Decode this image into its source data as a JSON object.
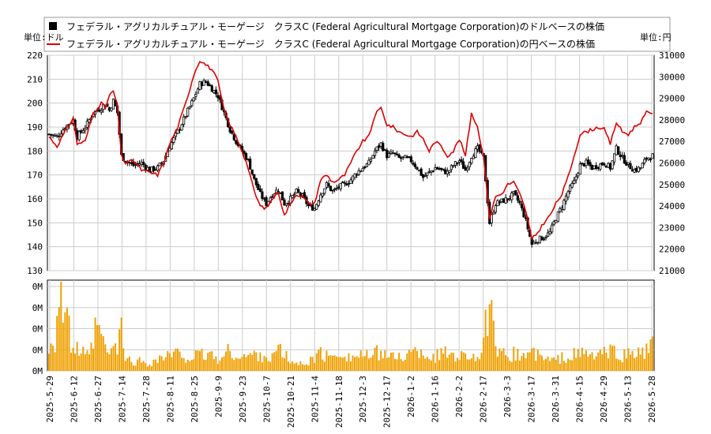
{
  "chart_data": {
    "type": "candlestick-line-volume",
    "legend": [
      {
        "label": "フェデラル・アグリカルチュアル・モーゲージ　クラスC (Federal Agricultural Mortgage Corporation)のドルベースの株価",
        "color": "#000000",
        "marker": "square"
      },
      {
        "label": "フェデラル・アグリカルチュアル・モーゲージ　クラスC (Federal Agricultural Mortgage Corporation)の円ベースの株価",
        "color": "#dd0000",
        "marker": "line"
      }
    ],
    "left_unit": "単位:ドル",
    "right_unit": "単位:円",
    "left_axis": {
      "min": 130,
      "max": 220,
      "ticks": [
        130,
        140,
        150,
        160,
        170,
        180,
        190,
        200,
        210,
        220
      ]
    },
    "right_axis": {
      "min": 21000,
      "max": 31000,
      "ticks": [
        21000,
        22000,
        23000,
        24000,
        25000,
        26000,
        27000,
        28000,
        29000,
        30000,
        31000
      ]
    },
    "volume_axis": {
      "tick_labels": [
        "0M",
        "0M",
        "0M",
        "0M",
        "0M"
      ]
    },
    "x_tick_labels": [
      "2025-5-29",
      "2025-6-12",
      "2025-6-27",
      "2025-7-14",
      "2025-7-28",
      "2025-8-11",
      "2025-8-25",
      "2025-9-9",
      "2025-9-23",
      "2025-10-7",
      "2025-10-21",
      "2025-11-4",
      "2025-11-18",
      "2025-12-3",
      "2025-12-17",
      "2026-1-2",
      "2026-1-16",
      "2026-2-2",
      "2026-2-17",
      "2026-3-3",
      "2026-3-17",
      "2026-3-31",
      "2026-4-15",
      "2026-4-29",
      "2026-5-13",
      "2026-5-28"
    ],
    "usd_close_keypoints": [
      [
        0,
        187
      ],
      [
        4,
        186
      ],
      [
        8,
        190
      ],
      [
        12,
        193
      ],
      [
        14,
        186
      ],
      [
        18,
        190
      ],
      [
        22,
        196
      ],
      [
        26,
        198
      ],
      [
        28,
        200
      ],
      [
        30,
        197
      ],
      [
        32,
        201
      ],
      [
        34,
        196
      ],
      [
        36,
        178
      ],
      [
        38,
        176
      ],
      [
        42,
        174
      ],
      [
        46,
        175
      ],
      [
        50,
        172
      ],
      [
        54,
        173
      ],
      [
        57,
        176
      ],
      [
        60,
        182
      ],
      [
        64,
        188
      ],
      [
        68,
        195
      ],
      [
        72,
        202
      ],
      [
        75,
        208
      ],
      [
        78,
        209
      ],
      [
        81,
        206
      ],
      [
        84,
        203
      ],
      [
        87,
        196
      ],
      [
        90,
        189
      ],
      [
        93,
        184
      ],
      [
        96,
        180
      ],
      [
        99,
        176
      ],
      [
        102,
        168
      ],
      [
        105,
        162
      ],
      [
        108,
        158
      ],
      [
        111,
        162
      ],
      [
        114,
        164
      ],
      [
        117,
        158
      ],
      [
        120,
        160
      ],
      [
        123,
        163
      ],
      [
        126,
        161
      ],
      [
        129,
        157
      ],
      [
        132,
        156
      ],
      [
        135,
        162
      ],
      [
        138,
        166
      ],
      [
        141,
        163
      ],
      [
        144,
        165
      ],
      [
        147,
        166
      ],
      [
        150,
        168
      ],
      [
        153,
        171
      ],
      [
        156,
        173
      ],
      [
        159,
        175
      ],
      [
        162,
        180
      ],
      [
        165,
        183
      ],
      [
        168,
        178
      ],
      [
        171,
        179
      ],
      [
        174,
        177
      ],
      [
        177,
        177
      ],
      [
        180,
        176
      ],
      [
        183,
        173
      ],
      [
        186,
        169
      ],
      [
        189,
        171
      ],
      [
        192,
        173
      ],
      [
        195,
        172
      ],
      [
        198,
        171
      ],
      [
        201,
        174
      ],
      [
        204,
        176
      ],
      [
        207,
        172
      ],
      [
        210,
        178
      ],
      [
        213,
        181
      ],
      [
        216,
        177
      ],
      [
        219,
        150
      ],
      [
        222,
        158
      ],
      [
        225,
        159
      ],
      [
        228,
        160
      ],
      [
        231,
        162
      ],
      [
        234,
        158
      ],
      [
        237,
        151
      ],
      [
        240,
        141
      ],
      [
        243,
        143
      ],
      [
        246,
        144
      ],
      [
        249,
        146
      ],
      [
        252,
        152
      ],
      [
        255,
        157
      ],
      [
        258,
        163
      ],
      [
        261,
        167
      ],
      [
        264,
        174
      ],
      [
        267,
        175
      ],
      [
        270,
        173
      ],
      [
        273,
        174
      ],
      [
        276,
        175
      ],
      [
        279,
        173
      ],
      [
        282,
        181
      ],
      [
        285,
        177
      ],
      [
        288,
        174
      ],
      [
        291,
        172
      ],
      [
        294,
        173
      ],
      [
        297,
        177
      ],
      [
        300,
        178
      ]
    ],
    "jpy_close_keypoints": [
      [
        0,
        186
      ],
      [
        4,
        182
      ],
      [
        8,
        188
      ],
      [
        12,
        194
      ],
      [
        14,
        183
      ],
      [
        18,
        184
      ],
      [
        22,
        196
      ],
      [
        26,
        200
      ],
      [
        28,
        198
      ],
      [
        30,
        203
      ],
      [
        32,
        205
      ],
      [
        34,
        199
      ],
      [
        36,
        178
      ],
      [
        38,
        175
      ],
      [
        42,
        176
      ],
      [
        46,
        172
      ],
      [
        50,
        171
      ],
      [
        54,
        170
      ],
      [
        57,
        175
      ],
      [
        60,
        183
      ],
      [
        64,
        190
      ],
      [
        68,
        200
      ],
      [
        72,
        212
      ],
      [
        75,
        218
      ],
      [
        78,
        216
      ],
      [
        81,
        214
      ],
      [
        84,
        209
      ],
      [
        87,
        197
      ],
      [
        90,
        191
      ],
      [
        93,
        186
      ],
      [
        96,
        180
      ],
      [
        99,
        173
      ],
      [
        102,
        163
      ],
      [
        105,
        157
      ],
      [
        108,
        156
      ],
      [
        111,
        160
      ],
      [
        114,
        163
      ],
      [
        117,
        153
      ],
      [
        120,
        158
      ],
      [
        123,
        162
      ],
      [
        126,
        161
      ],
      [
        129,
        158
      ],
      [
        132,
        158
      ],
      [
        135,
        168
      ],
      [
        138,
        170
      ],
      [
        141,
        167
      ],
      [
        144,
        168
      ],
      [
        147,
        170
      ],
      [
        150,
        175
      ],
      [
        153,
        180
      ],
      [
        156,
        184
      ],
      [
        159,
        186
      ],
      [
        162,
        195
      ],
      [
        165,
        198
      ],
      [
        168,
        191
      ],
      [
        171,
        190
      ],
      [
        174,
        188
      ],
      [
        177,
        187
      ],
      [
        180,
        186
      ],
      [
        183,
        188
      ],
      [
        186,
        185
      ],
      [
        189,
        180
      ],
      [
        192,
        184
      ],
      [
        195,
        182
      ],
      [
        198,
        178
      ],
      [
        201,
        180
      ],
      [
        204,
        185
      ],
      [
        207,
        178
      ],
      [
        210,
        196
      ],
      [
        213,
        190
      ],
      [
        216,
        178
      ],
      [
        219,
        152
      ],
      [
        222,
        161
      ],
      [
        225,
        162
      ],
      [
        228,
        166
      ],
      [
        231,
        167
      ],
      [
        234,
        162
      ],
      [
        237,
        155
      ],
      [
        240,
        143
      ],
      [
        243,
        146
      ],
      [
        246,
        150
      ],
      [
        249,
        153
      ],
      [
        252,
        158
      ],
      [
        255,
        162
      ],
      [
        258,
        169
      ],
      [
        261,
        178
      ],
      [
        264,
        187
      ],
      [
        267,
        188
      ],
      [
        270,
        189
      ],
      [
        273,
        190
      ],
      [
        276,
        189
      ],
      [
        279,
        183
      ],
      [
        282,
        192
      ],
      [
        285,
        188
      ],
      [
        288,
        187
      ],
      [
        291,
        190
      ],
      [
        294,
        192
      ],
      [
        297,
        196
      ],
      [
        300,
        196
      ]
    ],
    "volume_keypoints": [
      [
        0,
        0.3
      ],
      [
        3,
        0.4
      ],
      [
        5,
        0.9
      ],
      [
        6,
        1.0
      ],
      [
        7,
        0.8
      ],
      [
        9,
        0.6
      ],
      [
        11,
        0.3
      ],
      [
        14,
        0.25
      ],
      [
        17,
        0.2
      ],
      [
        20,
        0.15
      ],
      [
        24,
        0.55
      ],
      [
        27,
        0.3
      ],
      [
        30,
        0.2
      ],
      [
        34,
        0.3
      ],
      [
        36,
        0.45
      ],
      [
        38,
        0.15
      ],
      [
        42,
        0.1
      ],
      [
        46,
        0.12
      ],
      [
        50,
        0.08
      ],
      [
        55,
        0.15
      ],
      [
        60,
        0.18
      ],
      [
        65,
        0.2
      ],
      [
        70,
        0.15
      ],
      [
        75,
        0.18
      ],
      [
        80,
        0.2
      ],
      [
        85,
        0.12
      ],
      [
        90,
        0.25
      ],
      [
        95,
        0.15
      ],
      [
        100,
        0.18
      ],
      [
        105,
        0.2
      ],
      [
        110,
        0.15
      ],
      [
        115,
        0.25
      ],
      [
        120,
        0.1
      ],
      [
        125,
        0.08
      ],
      [
        130,
        0.12
      ],
      [
        135,
        0.2
      ],
      [
        140,
        0.15
      ],
      [
        145,
        0.25
      ],
      [
        150,
        0.15
      ],
      [
        155,
        0.2
      ],
      [
        160,
        0.15
      ],
      [
        165,
        0.25
      ],
      [
        170,
        0.15
      ],
      [
        175,
        0.18
      ],
      [
        180,
        0.2
      ],
      [
        185,
        0.25
      ],
      [
        190,
        0.15
      ],
      [
        195,
        0.2
      ],
      [
        200,
        0.22
      ],
      [
        205,
        0.18
      ],
      [
        210,
        0.2
      ],
      [
        215,
        0.15
      ],
      [
        219,
        0.85
      ],
      [
        222,
        0.2
      ],
      [
        225,
        0.18
      ],
      [
        230,
        0.2
      ],
      [
        235,
        0.18
      ],
      [
        240,
        0.22
      ],
      [
        245,
        0.15
      ],
      [
        250,
        0.12
      ],
      [
        255,
        0.15
      ],
      [
        260,
        0.18
      ],
      [
        265,
        0.2
      ],
      [
        270,
        0.18
      ],
      [
        275,
        0.2
      ],
      [
        280,
        0.22
      ],
      [
        285,
        0.18
      ],
      [
        290,
        0.2
      ],
      [
        295,
        0.22
      ],
      [
        300,
        0.28
      ]
    ]
  }
}
